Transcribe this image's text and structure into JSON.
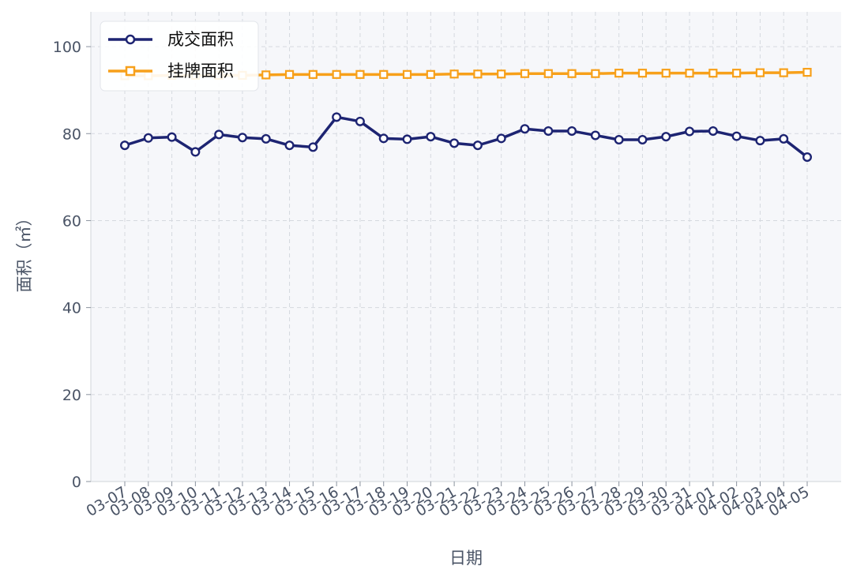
{
  "chart_data": {
    "type": "line",
    "title": "",
    "xlabel": "日期",
    "ylabel": "面积（㎡）",
    "ylim": [
      0,
      108
    ],
    "yticks": [
      0,
      20,
      40,
      60,
      80,
      100
    ],
    "grid": true,
    "legend_position": "top-left",
    "categories": [
      "03-07",
      "03-08",
      "03-09",
      "03-10",
      "03-11",
      "03-12",
      "03-13",
      "03-14",
      "03-15",
      "03-16",
      "03-17",
      "03-18",
      "03-19",
      "03-20",
      "03-21",
      "03-22",
      "03-23",
      "03-24",
      "03-25",
      "03-26",
      "03-27",
      "03-28",
      "03-29",
      "03-30",
      "03-31",
      "04-01",
      "04-02",
      "04-03",
      "04-04",
      "04-05"
    ],
    "series": [
      {
        "name": "成交面积",
        "color": "#1d2472",
        "marker": "circle",
        "values": [
          77.3,
          79.0,
          79.2,
          75.8,
          79.8,
          79.1,
          78.8,
          77.3,
          76.9,
          83.8,
          82.8,
          78.9,
          78.7,
          79.3,
          77.8,
          77.3,
          78.9,
          81.1,
          80.6,
          80.6,
          79.6,
          78.6,
          78.6,
          79.3,
          80.5,
          80.6,
          79.4,
          78.4,
          78.8,
          74.6
        ]
      },
      {
        "name": "挂牌面积",
        "color": "#f7a01a",
        "marker": "square",
        "values": [
          93.3,
          93.3,
          93.4,
          93.4,
          93.4,
          93.4,
          93.5,
          93.6,
          93.6,
          93.6,
          93.6,
          93.6,
          93.6,
          93.6,
          93.7,
          93.7,
          93.7,
          93.8,
          93.8,
          93.8,
          93.8,
          93.9,
          93.9,
          93.9,
          93.9,
          93.9,
          93.9,
          94.0,
          94.0,
          94.1
        ]
      }
    ]
  }
}
